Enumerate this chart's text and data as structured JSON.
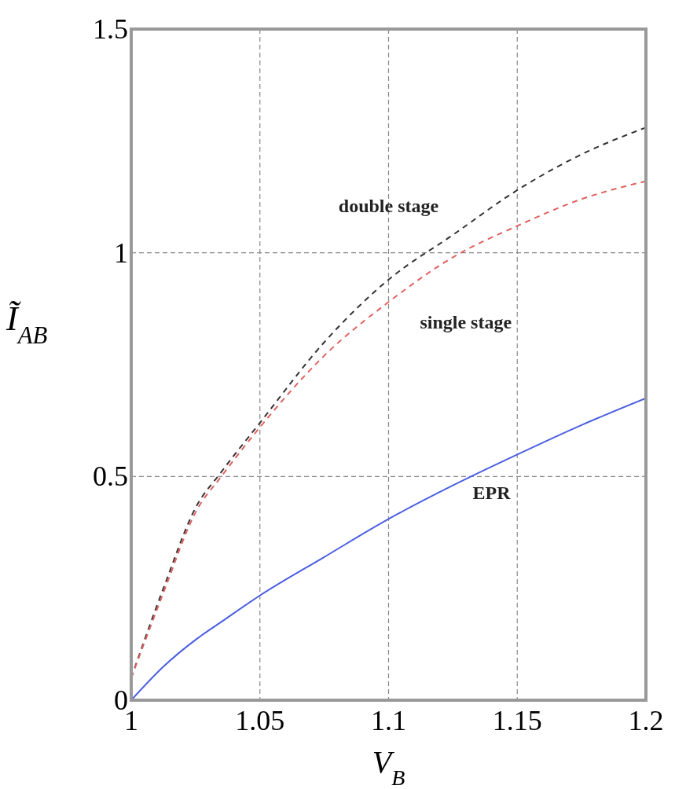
{
  "chart_data": {
    "type": "line",
    "xlabel": "V$_{B}$",
    "ylabel": "Ĩ$_{AB}$",
    "x": [
      1,
      1.0125,
      1.025,
      1.035,
      1.05,
      1.075,
      1.1,
      1.125,
      1.15,
      1.175,
      1.2
    ],
    "series": [
      {
        "name": "double stage",
        "color": "#333333",
        "line_style": "dashed",
        "values": [
          0.05,
          0.25,
          0.43,
          0.51,
          0.62,
          0.8,
          0.94,
          1.04,
          1.14,
          1.22,
          1.28
        ]
      },
      {
        "name": "single stage",
        "color": "#e06060",
        "line_style": "dashed",
        "values": [
          0.05,
          0.24,
          0.42,
          0.5,
          0.61,
          0.77,
          0.89,
          0.99,
          1.06,
          1.12,
          1.16
        ]
      },
      {
        "name": "EPR",
        "color": "#4b5fe0",
        "line_style": "solid",
        "values": [
          0,
          0.075,
          0.135,
          0.175,
          0.234,
          0.32,
          0.405,
          0.48,
          0.549,
          0.615,
          0.675
        ]
      }
    ],
    "xlim": [
      1,
      1.2
    ],
    "xticks": [
      1,
      1.05,
      1.1,
      1.15,
      1.2
    ],
    "ylim": [
      0,
      1.5
    ],
    "yticks": [
      0,
      0.5,
      1,
      1.5
    ],
    "grid": true
  }
}
